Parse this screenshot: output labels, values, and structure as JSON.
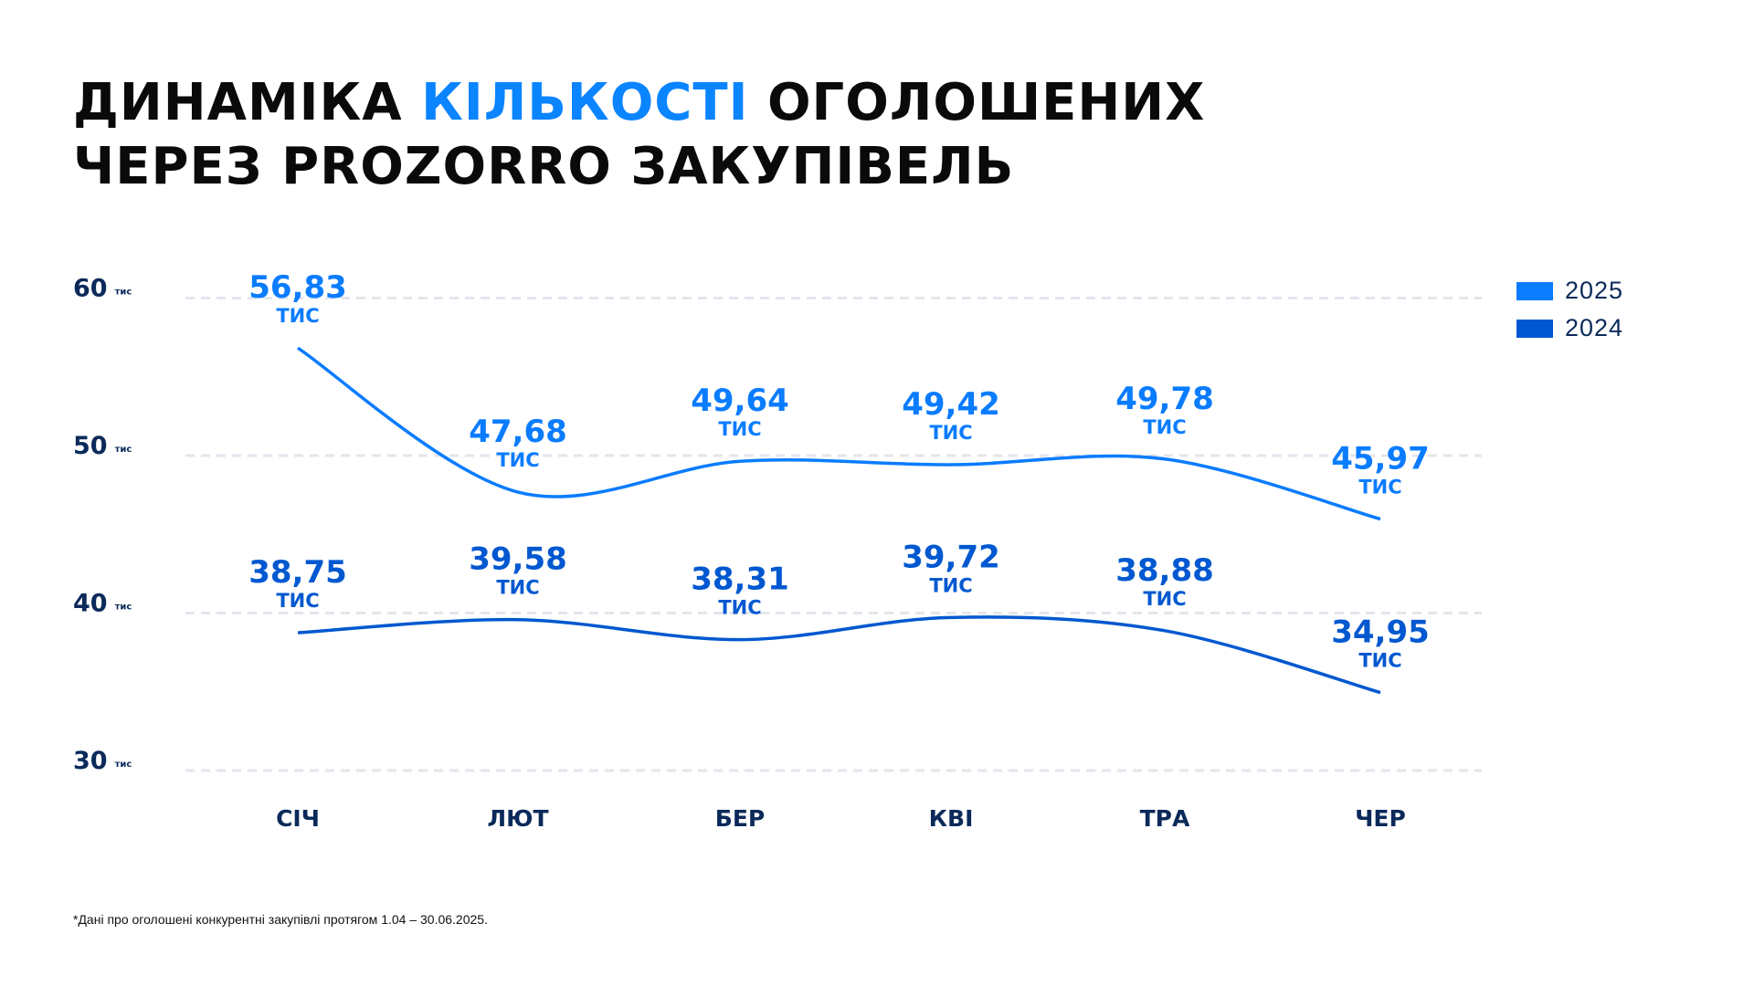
{
  "title": {
    "line1_part1": "ДИНАМІКА",
    "line1_accent": "КІЛЬКОСТІ",
    "line1_part2": "ОГОЛОШЕНИХ",
    "line2": "ЧЕРЕЗ PROZORRO ЗАКУПІВЕЛЬ"
  },
  "footnote": "*Дані про оголошені конкурентні закупівлі протягом 1.04 – 30.06.2025.",
  "chart_data": {
    "type": "line",
    "categories": [
      "СІЧ",
      "ЛЮТ",
      "БЕР",
      "КВІ",
      "ТРА",
      "ЧЕР"
    ],
    "unit": "тис",
    "series": [
      {
        "name": "2025",
        "color": "#0a7cff",
        "values": [
          56.83,
          47.68,
          49.64,
          49.42,
          49.78,
          45.97
        ],
        "labels": [
          "56,83",
          "47,68",
          "49,64",
          "49,42",
          "49,78",
          "45,97"
        ]
      },
      {
        "name": "2024",
        "color": "#0058d0",
        "values": [
          38.75,
          39.58,
          38.31,
          39.72,
          38.88,
          34.95
        ],
        "labels": [
          "38,75",
          "39,58",
          "38,31",
          "39,72",
          "38,88",
          "34,95"
        ]
      }
    ],
    "yticks": [
      30,
      40,
      50,
      60
    ],
    "ylim": [
      30,
      60
    ],
    "grid": true,
    "legend": "top-right",
    "axis_color": "#0b2a5a"
  }
}
